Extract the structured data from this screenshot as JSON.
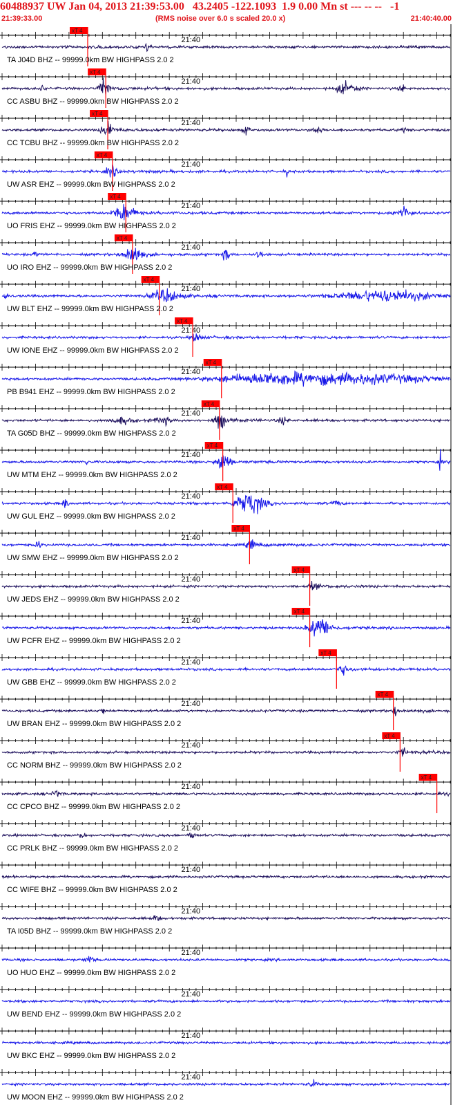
{
  "header": {
    "title": "60488937 UW Jan 04, 2013 21:39:53.00   43.2405 -122.1093  1.9 0.00 Mn st --- -- --   -1",
    "start_time": "21:39:33.00",
    "noise_note": "(RMS noise over 6.0 s scaled 20.0 x)",
    "end_time": "21:40:40.00"
  },
  "colors": {
    "header_text": "#e0151b",
    "pick_color": "#ff0000",
    "trace_dark": "#1c0f5c",
    "trace_blue": "#1717e8",
    "axis": "#000000"
  },
  "chart_data": {
    "type": "line",
    "x_unit": "time (s after 21:39:33.00)",
    "xlim": [
      0,
      67
    ],
    "minute_label": "21:40",
    "minute_mark_s": 27,
    "pick_label": "xT 4",
    "series": [
      {
        "name": "TA.J04D.BHZ.--",
        "label": "TA J04D BHZ -- 99999.0km BW  HIGHPASS  2.0  2",
        "color": "dark",
        "pick_s": 12.8,
        "bursts": [
          [
            21.8,
            0.5,
            0.35
          ]
        ]
      },
      {
        "name": "CC.ASBU.BHZ.--",
        "label": "CC ASBU BHZ -- 99999.0km BW  HIGHPASS  2.0  2",
        "color": "dark",
        "pick_s": 15.5,
        "bursts": [
          [
            15.2,
            0.7,
            1.0
          ],
          [
            6.0,
            0.4,
            0.3
          ],
          [
            51.5,
            1.5,
            0.55
          ],
          [
            59.8,
            0.4,
            0.5
          ]
        ]
      },
      {
        "name": "CC.TCBU.BHZ.--",
        "label": "CC TCBU BHZ -- 99999.0km BW  HIGHPASS  2.0  2",
        "color": "dark",
        "pick_s": 15.8,
        "bursts": [
          [
            15.8,
            0.8,
            0.85
          ],
          [
            36.5,
            0.6,
            0.35
          ],
          [
            47.0,
            0.6,
            0.5
          ],
          [
            60.0,
            0.4,
            0.3
          ]
        ]
      },
      {
        "name": "UW.ASR.EHZ.--",
        "label": "UW ASR EHZ -- 99999.0km BW  HIGHPASS  2.0  2",
        "color": "blue",
        "pick_s": 16.5,
        "bursts": [
          [
            16.3,
            0.8,
            0.45
          ],
          [
            42.5,
            0.15,
            0.9
          ]
        ]
      },
      {
        "name": "UO.FRIS.EHZ.--",
        "label": "UO FRIS EHZ -- 99999.0km BW  HIGHPASS  2.0  2",
        "color": "blue",
        "pick_s": 18.5,
        "bursts": [
          [
            18.2,
            1.4,
            0.85
          ],
          [
            60.0,
            1.2,
            0.6
          ]
        ]
      },
      {
        "name": "UO.IRO.EHZ.--",
        "label": "UO IRO EHZ -- 99999.0km BW  HIGHPASS  2.0  2",
        "color": "blue",
        "pick_s": 19.5,
        "bursts": [
          [
            19.5,
            1.3,
            0.95
          ],
          [
            33.5,
            0.6,
            0.5
          ],
          [
            38.5,
            0.5,
            0.4
          ],
          [
            5.0,
            0.3,
            0.25
          ]
        ]
      },
      {
        "name": "UW.BLT.EHZ.--",
        "label": "UW BLT EHZ -- 99999.0km BW  HIGHPASS  2.0  2",
        "color": "blue",
        "pick_s": 23.5,
        "bursts": [
          [
            24.5,
            2.2,
            0.55
          ],
          [
            57.5,
            7.0,
            0.55
          ],
          [
            0.6,
            0.3,
            0.5
          ]
        ]
      },
      {
        "name": "UW.IONE.EHZ.--",
        "label": "UW IONE EHZ -- 99999.0km BW  HIGHPASS  2.0  2",
        "color": "blue",
        "pick_s": 28.5,
        "bursts": [
          [
            29.0,
            0.6,
            0.4
          ]
        ]
      },
      {
        "name": "PB.B941.EHZ.--",
        "label": "PB B941 EHZ -- 99999.0km BW  HIGHPASS  2.0  2",
        "color": "blue",
        "pick_s": 32.8,
        "bursts": [
          [
            42.0,
            9.0,
            0.55
          ],
          [
            56.0,
            9.0,
            0.4
          ]
        ]
      },
      {
        "name": "TA.G05D.BHZ.--",
        "label": "TA G05D BHZ -- 99999.0km BW  HIGHPASS  2.0  2",
        "color": "dark",
        "pick_s": 32.5,
        "bursts": [
          [
            32.5,
            0.8,
            0.8
          ],
          [
            24.0,
            1.2,
            0.4
          ],
          [
            18.0,
            1.5,
            0.3
          ],
          [
            42.0,
            0.6,
            0.3
          ]
        ]
      },
      {
        "name": "UW.MTM.EHZ.--",
        "label": "UW MTM EHZ -- 99999.0km BW  HIGHPASS  2.0  2",
        "color": "blue",
        "pick_s": 33.0,
        "bursts": [
          [
            33.0,
            0.9,
            1.0
          ],
          [
            12.5,
            0.3,
            0.4
          ],
          [
            65.5,
            0.2,
            0.95
          ]
        ]
      },
      {
        "name": "UW.GUL.EHZ.--",
        "label": "UW GUL EHZ -- 99999.0km BW  HIGHPASS  2.0  2",
        "color": "blue",
        "pick_s": 34.5,
        "bursts": [
          [
            37.0,
            2.0,
            1.05
          ],
          [
            9.5,
            0.4,
            0.5
          ],
          [
            50.0,
            0.5,
            0.35
          ]
        ]
      },
      {
        "name": "UW.SMW.EHZ.--",
        "label": "UW SMW EHZ -- 99999.0km BW  HIGHPASS  2.0  2",
        "color": "blue",
        "pick_s": 37.0,
        "bursts": [
          [
            37.2,
            0.6,
            0.55
          ],
          [
            5.5,
            0.5,
            0.35
          ]
        ]
      },
      {
        "name": "UW.JEDS.EHZ.--",
        "label": "UW JEDS EHZ -- 99999.0km BW  HIGHPASS  2.0  2",
        "color": "dark",
        "pick_s": 46.0,
        "bursts": [
          [
            46.5,
            0.6,
            0.3
          ]
        ]
      },
      {
        "name": "UW.PCFR.EHZ.--",
        "label": "UW PCFR EHZ -- 99999.0km BW  HIGHPASS  2.0  2",
        "color": "blue",
        "pick_s": 46.0,
        "bursts": [
          [
            47.5,
            1.5,
            1.0
          ]
        ]
      },
      {
        "name": "UW.GBB.EHZ.--",
        "label": "UW GBB EHZ -- 99999.0km BW  HIGHPASS  2.0  2",
        "color": "blue",
        "pick_s": 50.0,
        "bursts": [
          [
            51.0,
            0.7,
            0.4
          ]
        ]
      },
      {
        "name": "UW.BRAN.EHZ.--",
        "label": "UW BRAN EHZ -- 99999.0km BW  HIGHPASS  2.0  2",
        "color": "dark",
        "pick_s": 58.5,
        "bursts": [
          [
            58.8,
            0.3,
            0.5
          ],
          [
            15.0,
            0.3,
            0.4
          ]
        ]
      },
      {
        "name": "CC.NORM.BHZ.--",
        "label": "CC NORM BHZ -- 99999.0km BW  HIGHPASS  2.0  2",
        "color": "dark",
        "pick_s": 59.5,
        "bursts": [
          [
            59.8,
            0.5,
            0.4
          ]
        ]
      },
      {
        "name": "CC.CPCO.BHZ.--",
        "label": "CC CPCO BHZ -- 99999.0km BW  HIGHPASS  2.0  2",
        "color": "dark",
        "pick_s": 65.0,
        "bursts": [
          [
            8.0,
            0.5,
            0.4
          ]
        ]
      },
      {
        "name": "CC.PRLK.BHZ.--",
        "label": "CC PRLK BHZ -- 99999.0km BW  HIGHPASS  2.0  2",
        "color": "dark",
        "pick_s": null,
        "bursts": [
          [
            28.5,
            0.4,
            0.45
          ],
          [
            12.0,
            0.4,
            0.3
          ]
        ]
      },
      {
        "name": "CC.WIFE.BHZ.--",
        "label": "CC WIFE BHZ -- 99999.0km BW  HIGHPASS  2.0  2",
        "color": "dark",
        "pick_s": null,
        "bursts": []
      },
      {
        "name": "TA.I05D.BHZ.--",
        "label": "TA I05D BHZ -- 99999.0km BW  HIGHPASS  2.0  2",
        "color": "dark",
        "pick_s": null,
        "bursts": [
          [
            23.0,
            0.6,
            0.25
          ]
        ]
      },
      {
        "name": "UO.HUO.EHZ.--",
        "label": "UO HUO EHZ -- 99999.0km BW  HIGHPASS  2.0  2",
        "color": "blue",
        "pick_s": null,
        "bursts": [
          [
            13.0,
            0.6,
            0.35
          ]
        ]
      },
      {
        "name": "UW.BEND.EHZ.--",
        "label": "UW BEND EHZ -- 99999.0km BW  HIGHPASS  2.0  2",
        "color": "blue",
        "pick_s": null,
        "bursts": []
      },
      {
        "name": "UW.BKC.EHZ.--",
        "label": "UW BKC EHZ -- 99999.0km BW  HIGHPASS  2.0  2",
        "color": "blue",
        "pick_s": null,
        "bursts": []
      },
      {
        "name": "UW.MOON.EHZ.--",
        "label": "UW MOON EHZ -- 99999.0km BW  HIGHPASS  2.0  2",
        "color": "blue",
        "pick_s": null,
        "bursts": [
          [
            46.5,
            0.5,
            0.35
          ]
        ]
      }
    ]
  }
}
